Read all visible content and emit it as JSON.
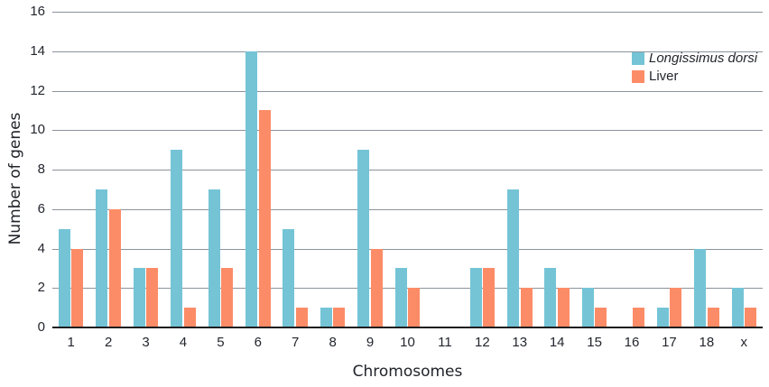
{
  "chart_data": {
    "type": "bar",
    "categories": [
      "1",
      "2",
      "3",
      "4",
      "5",
      "6",
      "7",
      "8",
      "9",
      "10",
      "11",
      "12",
      "13",
      "14",
      "15",
      "16",
      "17",
      "18",
      "x"
    ],
    "series": [
      {
        "name": "Longissimus dorsi",
        "color": "#74c4d6",
        "italic": true,
        "values": [
          5,
          7,
          3,
          9,
          7,
          14,
          5,
          1,
          9,
          3,
          0,
          3,
          7,
          3,
          2,
          0,
          1,
          4,
          2
        ]
      },
      {
        "name": "Liver",
        "color": "#fc8c67",
        "italic": false,
        "values": [
          4,
          6,
          3,
          1,
          3,
          11,
          1,
          1,
          4,
          2,
          0,
          3,
          2,
          2,
          1,
          1,
          2,
          1,
          1
        ]
      }
    ],
    "xlabel": "Chromosomes",
    "ylabel": "Number of genes",
    "ylim": [
      0,
      16
    ],
    "ytick_step": 2,
    "grid": true,
    "legend_position": "top-right",
    "colors": {
      "gridline": "#8b939c",
      "axis_line": "#1d1d1f",
      "text": "#23262e"
    }
  }
}
